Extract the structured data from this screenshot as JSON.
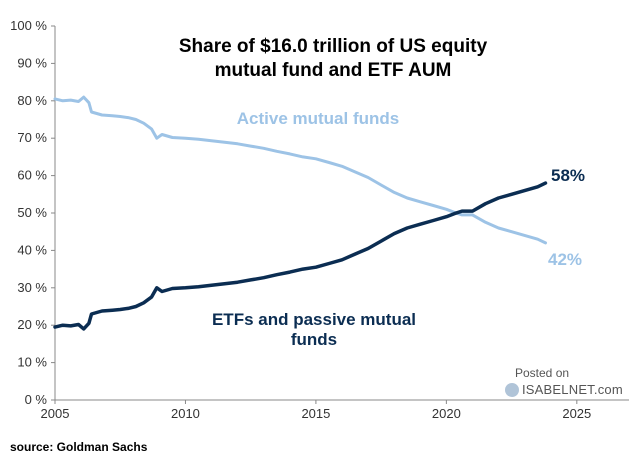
{
  "chart_data": {
    "type": "line",
    "title_line1": "Share of $16.0 trillion of US equity",
    "title_line2": "mutual fund and ETF AUM",
    "xlim": [
      2005,
      2027
    ],
    "ylim": [
      0,
      100
    ],
    "x_ticks": [
      2005,
      2010,
      2015,
      2020,
      2025
    ],
    "y_ticks": [
      0,
      10,
      20,
      30,
      40,
      50,
      60,
      70,
      80,
      90,
      100
    ],
    "y_tick_suffix": " %",
    "colors": {
      "active": "#9dc3e6",
      "etf": "#0b2d52",
      "axis": "#888888"
    },
    "series": [
      {
        "name": "Active mutual funds",
        "key": "active",
        "x": [
          2005.0,
          2005.3,
          2005.6,
          2005.9,
          2006.1,
          2006.3,
          2006.4,
          2006.8,
          2007.2,
          2007.5,
          2007.8,
          2008.1,
          2008.4,
          2008.7,
          2008.9,
          2009.1,
          2009.3,
          2009.5,
          2010.0,
          2010.5,
          2011.0,
          2011.5,
          2012.0,
          2012.5,
          2013.0,
          2013.5,
          2014.0,
          2014.5,
          2015.0,
          2015.5,
          2016.0,
          2016.5,
          2017.0,
          2017.5,
          2018.0,
          2018.5,
          2019.0,
          2019.5,
          2020.0,
          2020.3,
          2020.6,
          2021.0,
          2021.5,
          2022.0,
          2022.5,
          2023.0,
          2023.5,
          2023.8
        ],
        "values": [
          80.5,
          80.0,
          80.2,
          79.8,
          81.0,
          79.5,
          77.0,
          76.2,
          76.0,
          75.8,
          75.5,
          75.0,
          74.0,
          72.5,
          70.0,
          71.0,
          70.6,
          70.2,
          70.0,
          69.7,
          69.3,
          68.9,
          68.5,
          67.9,
          67.3,
          66.5,
          65.8,
          65.0,
          64.5,
          63.5,
          62.5,
          61.0,
          59.5,
          57.5,
          55.5,
          54.0,
          53.0,
          52.0,
          51.0,
          50.2,
          49.5,
          49.5,
          47.5,
          46.0,
          45.0,
          44.0,
          43.0,
          42.0
        ]
      },
      {
        "name": "ETFs and passive mutual funds",
        "key": "etf",
        "x": [
          2005.0,
          2005.3,
          2005.6,
          2005.9,
          2006.1,
          2006.3,
          2006.4,
          2006.8,
          2007.2,
          2007.5,
          2007.8,
          2008.1,
          2008.4,
          2008.7,
          2008.9,
          2009.1,
          2009.3,
          2009.5,
          2010.0,
          2010.5,
          2011.0,
          2011.5,
          2012.0,
          2012.5,
          2013.0,
          2013.5,
          2014.0,
          2014.5,
          2015.0,
          2015.5,
          2016.0,
          2016.5,
          2017.0,
          2017.5,
          2018.0,
          2018.5,
          2019.0,
          2019.5,
          2020.0,
          2020.3,
          2020.6,
          2021.0,
          2021.5,
          2022.0,
          2022.5,
          2023.0,
          2023.5,
          2023.8
        ],
        "values": [
          19.5,
          20.0,
          19.8,
          20.2,
          19.0,
          20.5,
          23.0,
          23.8,
          24.0,
          24.2,
          24.5,
          25.0,
          26.0,
          27.5,
          30.0,
          29.0,
          29.4,
          29.8,
          30.0,
          30.3,
          30.7,
          31.1,
          31.5,
          32.1,
          32.7,
          33.5,
          34.2,
          35.0,
          35.5,
          36.5,
          37.5,
          39.0,
          40.5,
          42.5,
          44.5,
          46.0,
          47.0,
          48.0,
          49.0,
          49.8,
          50.5,
          50.5,
          52.5,
          54.0,
          55.0,
          56.0,
          57.0,
          58.0
        ]
      }
    ],
    "annotations": {
      "active_label": "Active mutual funds",
      "etf_label_line1": "ETFs and passive mutual",
      "etf_label_line2": "funds",
      "active_end": "42%",
      "etf_end": "58%"
    }
  },
  "source": "source: Goldman Sachs",
  "watermark": {
    "posted": "Posted on",
    "site": "ISABELNET.com"
  }
}
